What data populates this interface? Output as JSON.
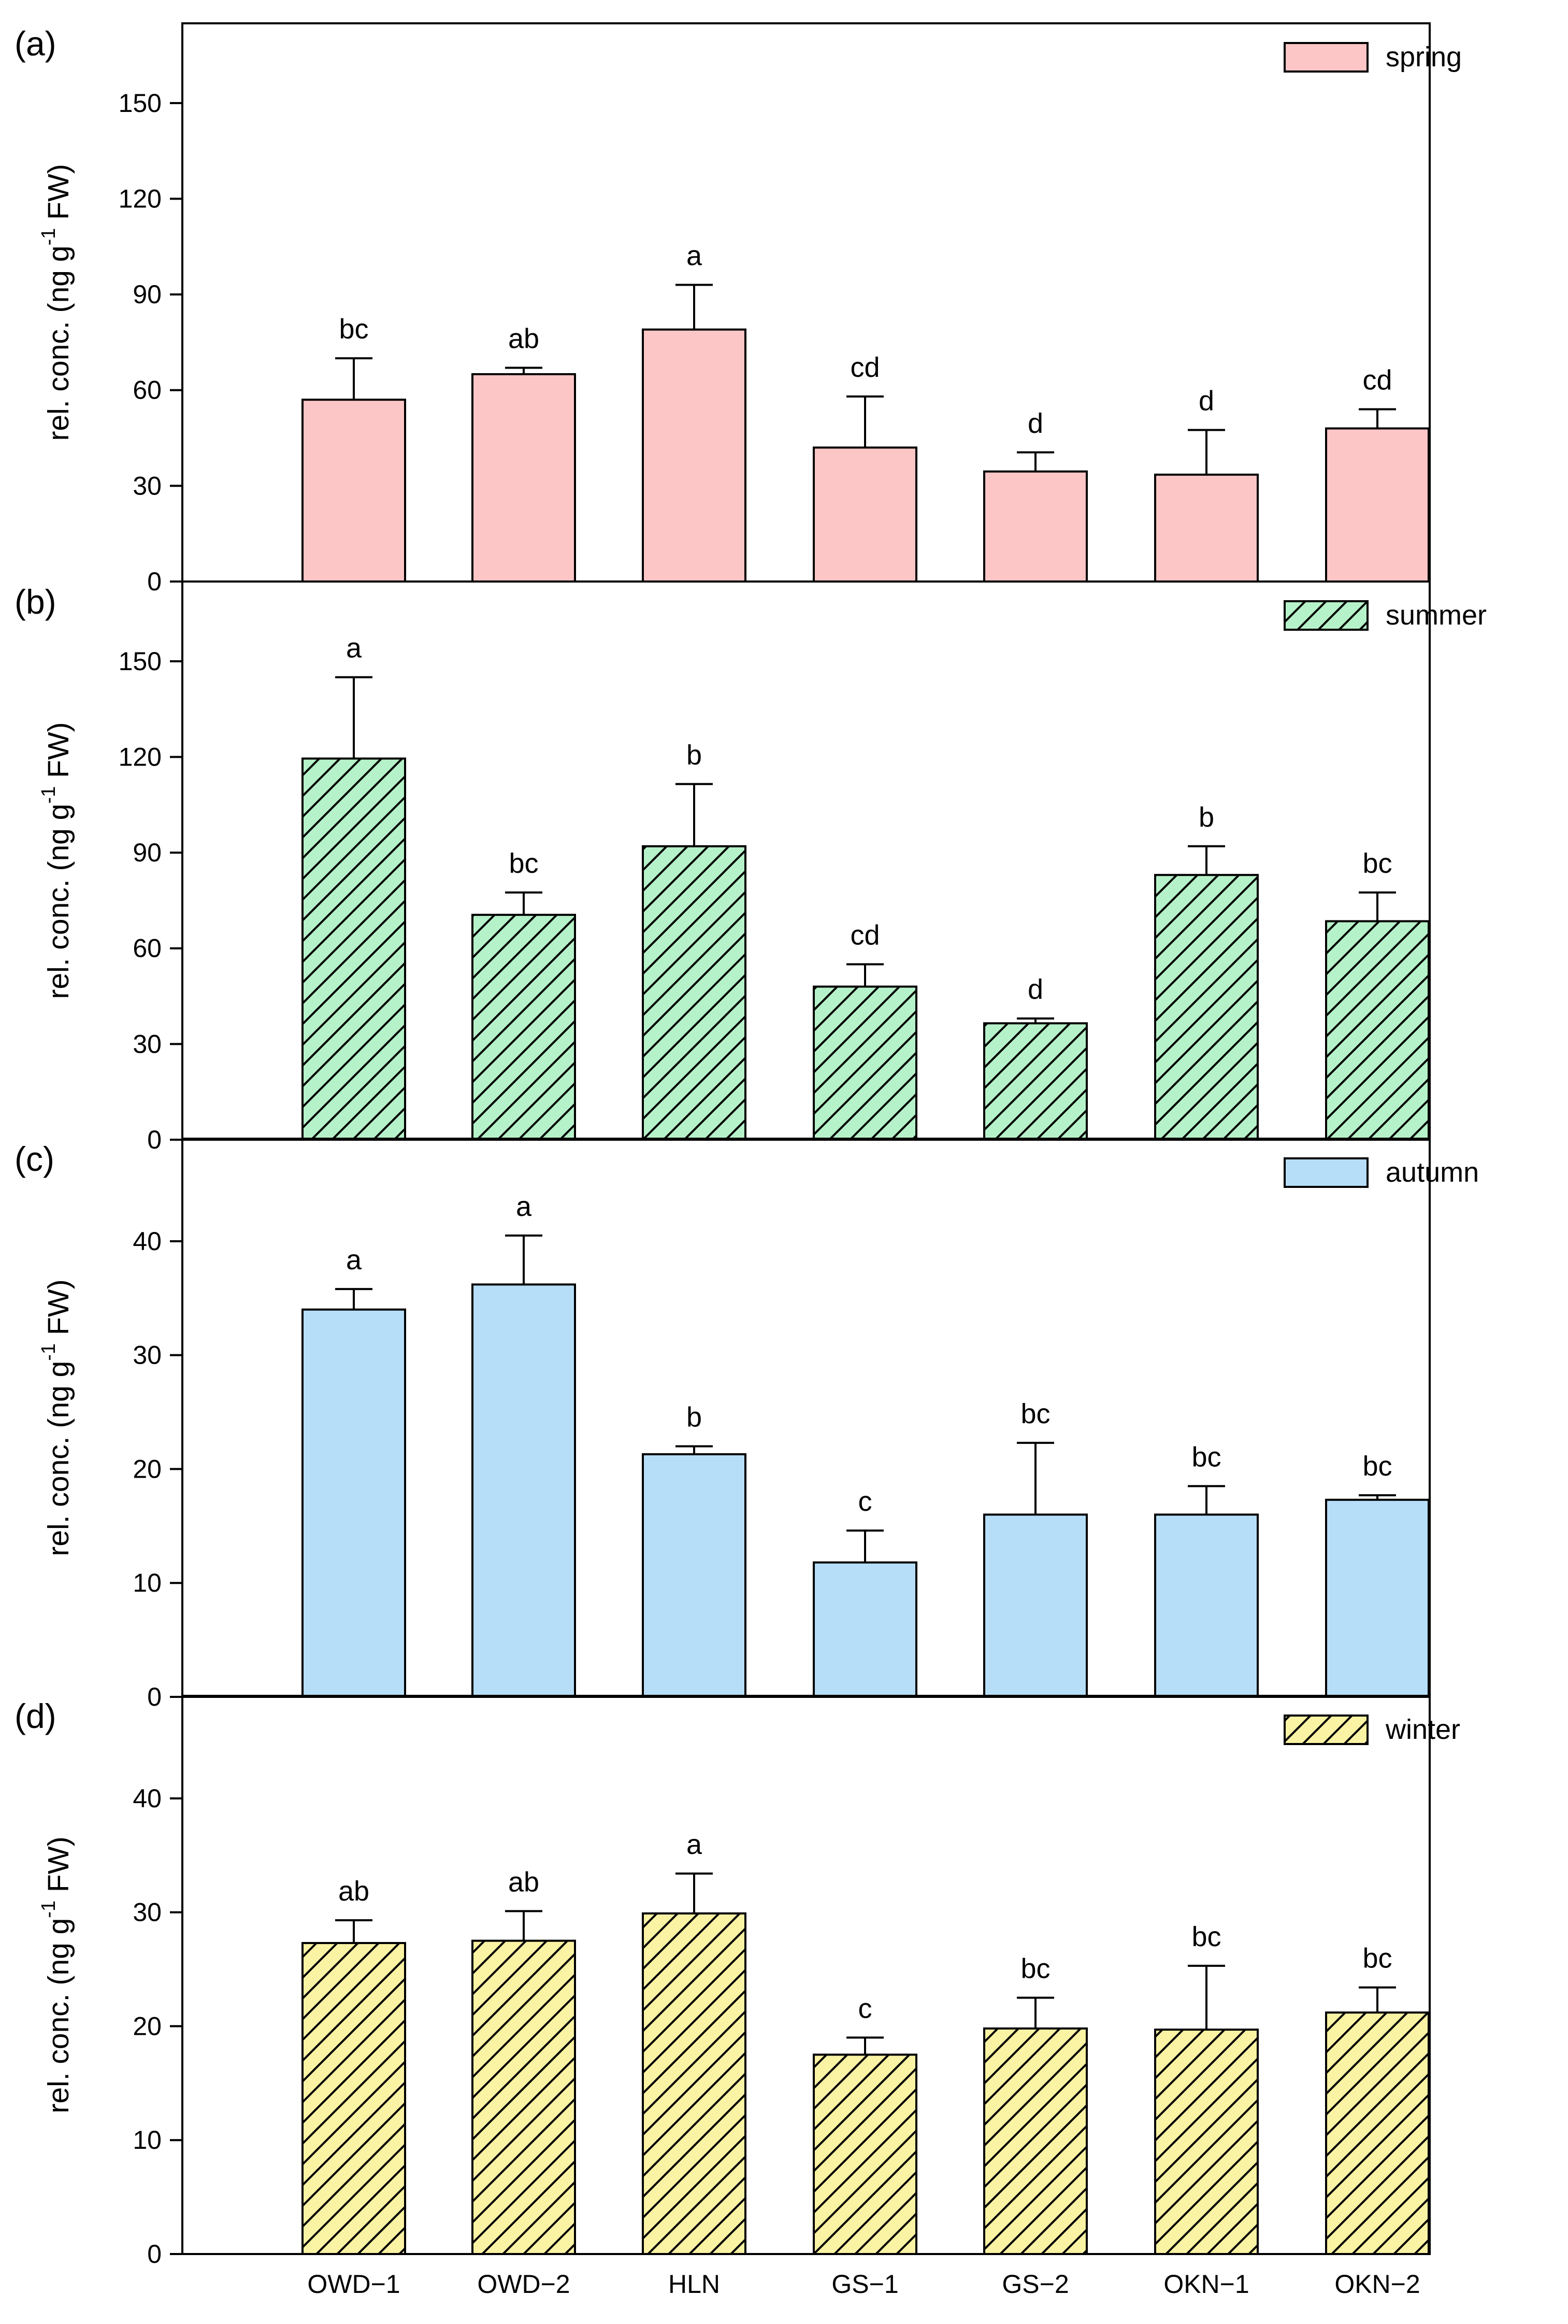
{
  "chart_data": [
    {
      "type": "bar",
      "panel": "(a)",
      "season": "spring",
      "ylabel": {
        "main": "rel. conc. (ng g",
        "sup": "-1",
        "tail": " FW)"
      },
      "ylim": [
        0,
        175
      ],
      "yticks": [
        0,
        30,
        60,
        90,
        120,
        150
      ],
      "categories": [
        "OWD−1",
        "OWD−2",
        "HLN",
        "GS−1",
        "GS−2",
        "OKN−1",
        "OKN−2"
      ],
      "values": [
        57,
        65,
        79,
        42,
        34.5,
        33.5,
        48
      ],
      "errors": [
        13,
        2,
        14,
        16,
        6,
        14,
        6
      ],
      "significance": [
        "bc",
        "ab",
        "a",
        "cd",
        "d",
        "d",
        "cd"
      ],
      "color": "#fdc6c6",
      "hatch": false,
      "legend": "spring"
    },
    {
      "type": "bar",
      "panel": "(b)",
      "season": "summer",
      "ylabel": {
        "main": "rel. conc. (ng g",
        "sup": "-1",
        "tail": " FW)"
      },
      "ylim": [
        0,
        175
      ],
      "yticks": [
        0,
        30,
        60,
        90,
        120,
        150
      ],
      "categories": [
        "OWD−1",
        "OWD−2",
        "HLN",
        "GS−1",
        "GS−2",
        "OKN−1",
        "OKN−2"
      ],
      "values": [
        119.5,
        70.5,
        92,
        48,
        36.5,
        83,
        68.5
      ],
      "errors": [
        25.5,
        7,
        19.5,
        7,
        1.5,
        9,
        9
      ],
      "significance": [
        "a",
        "bc",
        "b",
        "cd",
        "d",
        "b",
        "bc"
      ],
      "color": "#b6f2c9",
      "hatch": true,
      "legend": "summer"
    },
    {
      "type": "bar",
      "panel": "(c)",
      "season": "autumn",
      "ylabel": {
        "main": "rel. conc. (ng g",
        "sup": "-1",
        "tail": " FW)"
      },
      "ylim": [
        0,
        49
      ],
      "yticks": [
        0,
        10,
        20,
        30,
        40
      ],
      "categories": [
        "OWD−1",
        "OWD−2",
        "HLN",
        "GS−1",
        "GS−2",
        "OKN−1",
        "OKN−2"
      ],
      "values": [
        34,
        36.2,
        21.3,
        11.8,
        16,
        16,
        17.3
      ],
      "errors": [
        1.8,
        4.3,
        0.7,
        2.8,
        6.3,
        2.5,
        0.4
      ],
      "significance": [
        "a",
        "a",
        "b",
        "c",
        "bc",
        "bc",
        "bc"
      ],
      "color": "#b6def8",
      "hatch": false,
      "legend": "autumn"
    },
    {
      "type": "bar",
      "panel": "(d)",
      "season": "winter",
      "ylabel": {
        "main": "rel. conc. (ng g",
        "sup": "-1",
        "tail": " FW)"
      },
      "ylim": [
        0,
        49
      ],
      "yticks": [
        0,
        10,
        20,
        30,
        40
      ],
      "categories": [
        "OWD−1",
        "OWD−2",
        "HLN",
        "GS−1",
        "GS−2",
        "OKN−1",
        "OKN−2"
      ],
      "values": [
        27.3,
        27.5,
        29.9,
        17.5,
        19.8,
        19.7,
        21.2
      ],
      "errors": [
        2,
        2.6,
        3.5,
        1.5,
        2.7,
        5.6,
        2.2
      ],
      "significance": [
        "ab",
        "ab",
        "a",
        "c",
        "bc",
        "bc",
        "bc"
      ],
      "color": "#fbf3a4",
      "hatch": true,
      "legend": "winter"
    }
  ]
}
